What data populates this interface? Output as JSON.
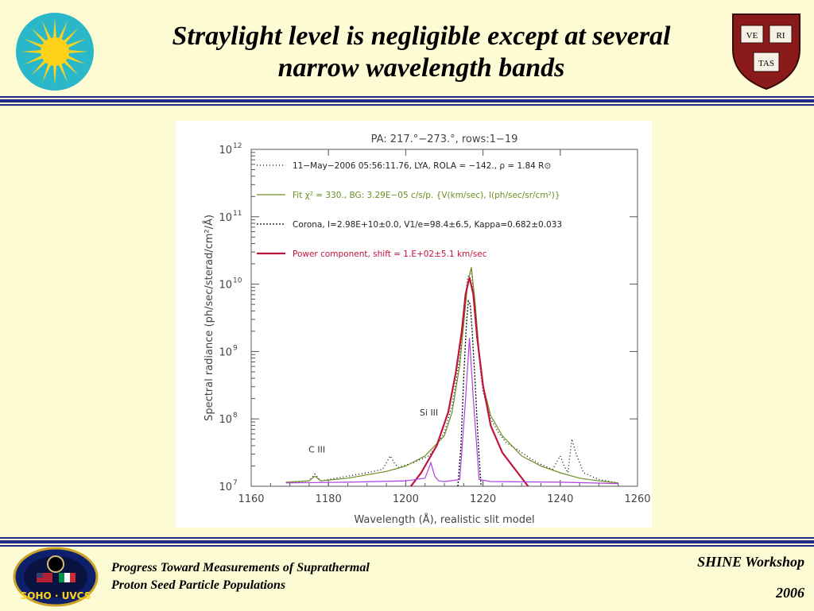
{
  "slide": {
    "title_line1": "Straylight level is negligible except at several",
    "title_line2": "narrow wavelength bands",
    "footer_left_line1": "Progress Toward Measurements of Suprathermal",
    "footer_left_line2": "Proton Seed Particle Populations",
    "footer_right_event": "SHINE Workshop",
    "footer_right_year": "2006",
    "shield_texts": [
      "VE",
      "RI",
      "TAS"
    ],
    "soho_badge_text": "SOHO · UVCS",
    "colors": {
      "background": "#fdfbd3",
      "rule": "#1f2a8a",
      "title": "#000000"
    }
  },
  "chart_data": {
    "type": "line",
    "title": "PA: 217.°−273.°, rows:1−19",
    "xlabel": "Wavelength (Å), realistic slit model",
    "ylabel": "Spectral radiance (ph/sec/sterad/cm²/Å)",
    "xlim": [
      1160,
      1260
    ],
    "ylim_log10": [
      7,
      12
    ],
    "y_scale": "log",
    "x_ticks": [
      1160,
      1180,
      1200,
      1220,
      1240,
      1260
    ],
    "y_ticks": [
      {
        "exp": 7,
        "label_base": "10",
        "label_exp": "7"
      },
      {
        "exp": 8,
        "label_base": "10",
        "label_exp": "8"
      },
      {
        "exp": 9,
        "label_base": "10",
        "label_exp": "9"
      },
      {
        "exp": 10,
        "label_base": "10",
        "label_exp": "10"
      },
      {
        "exp": 11,
        "label_base": "10",
        "label_exp": "11"
      },
      {
        "exp": 12,
        "label_base": "10",
        "label_exp": "12"
      }
    ],
    "legend": [
      {
        "text": "11−May−2006 05:56:11.76, LYA, ROLA = −142., ρ = 1.84 R⊙",
        "color": "#000000",
        "style": "dotted-sparse"
      },
      {
        "text": "Fit χ² = 330., BG: 3.29E−05 c/s/p. {V(km/sec), I(ph/sec/sr/cm²)}",
        "color": "#6b8e23",
        "style": "solid"
      },
      {
        "text": "Corona, I=2.98E+10±0.0, V1/e=98.4±6.5, Kappa=0.682±0.033",
        "color": "#000000",
        "style": "dotted"
      },
      {
        "text": "Power component, shift = 1.E+02±5.1 km/sec",
        "color": "#c0143c",
        "style": "solid-thick"
      }
    ],
    "legend_placement": "top-left",
    "annotations": [
      {
        "text": "C III",
        "x": 1177,
        "y_log10": 7.5
      },
      {
        "text": "Si III",
        "x": 1206,
        "y_log10": 8.05
      }
    ],
    "grid": false,
    "series": [
      {
        "name": "11−May−2006 05:56:11.76, LYA",
        "color": "#000000",
        "style": "dotted-sparse",
        "x": [
          1169,
          1172,
          1175,
          1176.5,
          1178,
          1182,
          1186,
          1190,
          1194,
          1196,
          1197,
          1198,
          1202,
          1206,
          1208,
          1210,
          1212,
          1214,
          1215,
          1216,
          1217,
          1218,
          1219,
          1220,
          1222,
          1224,
          1226,
          1230,
          1234,
          1238,
          1240,
          1241,
          1242,
          1243,
          1244,
          1246,
          1250,
          1255
        ],
        "y_log10": [
          7.05,
          7.06,
          7.08,
          7.18,
          7.08,
          7.12,
          7.16,
          7.2,
          7.25,
          7.45,
          7.35,
          7.28,
          7.35,
          7.45,
          7.6,
          7.8,
          8.2,
          8.9,
          9.5,
          10.1,
          10.2,
          9.6,
          8.9,
          8.4,
          8.0,
          7.8,
          7.65,
          7.5,
          7.35,
          7.25,
          7.45,
          7.3,
          7.2,
          7.7,
          7.5,
          7.2,
          7.1,
          7.05
        ]
      },
      {
        "name": "Fit",
        "color": "#6b8e23",
        "style": "solid",
        "x": [
          1169,
          1175,
          1176.5,
          1178,
          1185,
          1195,
          1200,
          1205,
          1210,
          1212,
          1214,
          1215,
          1216,
          1217,
          1218,
          1219,
          1220,
          1222,
          1225,
          1230,
          1235,
          1240,
          1245,
          1250,
          1255
        ],
        "y_log10": [
          7.06,
          7.08,
          7.15,
          7.08,
          7.12,
          7.22,
          7.3,
          7.45,
          7.75,
          8.1,
          8.8,
          9.4,
          10.0,
          10.25,
          9.7,
          9.0,
          8.5,
          8.05,
          7.75,
          7.45,
          7.3,
          7.2,
          7.12,
          7.08,
          7.05
        ]
      },
      {
        "name": "Corona",
        "color": "#000000",
        "style": "dotted",
        "x": [
          1213.5,
          1214.3,
          1215,
          1215.7,
          1216.2,
          1216.7,
          1217.2,
          1218,
          1218.8,
          1219.5,
          1220
        ],
        "y_log10": [
          7.0,
          7.6,
          8.6,
          9.4,
          9.75,
          9.7,
          9.3,
          8.5,
          7.6,
          7.0,
          6.9
        ]
      },
      {
        "name": "Power component",
        "color": "#c0143c",
        "style": "solid-thick",
        "x": [
          1200,
          1204,
          1208,
          1211,
          1213,
          1214.5,
          1215.5,
          1216.5,
          1217.5,
          1218.5,
          1220,
          1222,
          1225,
          1229,
          1233
        ],
        "y_log10": [
          6.9,
          7.2,
          7.6,
          8.1,
          8.7,
          9.3,
          9.85,
          10.1,
          9.85,
          9.2,
          8.5,
          7.9,
          7.5,
          7.2,
          6.9
        ]
      },
      {
        "name": "Magenta component",
        "color": "#b040e0",
        "style": "solid",
        "x": [
          1169,
          1185,
          1200,
          1205,
          1206.5,
          1207.5,
          1208.5,
          1210,
          1214,
          1215.5,
          1216.5,
          1217.5,
          1219,
          1222,
          1240,
          1255
        ],
        "y_log10": [
          7.05,
          7.06,
          7.08,
          7.12,
          7.35,
          7.15,
          7.08,
          7.07,
          7.1,
          8.3,
          9.2,
          8.3,
          7.1,
          7.07,
          7.06,
          7.04
        ]
      }
    ]
  }
}
